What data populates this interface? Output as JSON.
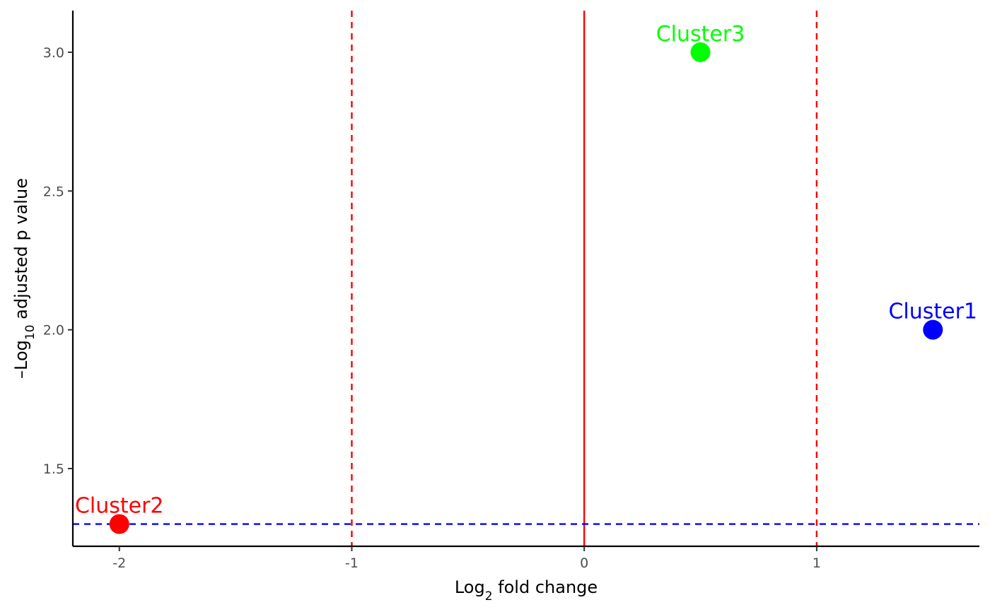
{
  "chart_data": {
    "type": "scatter",
    "title": "",
    "xlabel": {
      "prefix": "Log",
      "sub": "2",
      "suffix": " fold change"
    },
    "ylabel": {
      "prefix": "–Log",
      "sub": "10",
      "suffix": " adjusted p value"
    },
    "xlim": [
      -2.2,
      1.7
    ],
    "ylim": [
      1.22,
      3.15
    ],
    "x_ticks": [
      {
        "value": -2,
        "label": "-2"
      },
      {
        "value": -1,
        "label": "-1"
      },
      {
        "value": 0,
        "label": "0"
      },
      {
        "value": 1,
        "label": "1"
      }
    ],
    "y_ticks": [
      {
        "value": 1.5,
        "label": "1.5"
      },
      {
        "value": 2.0,
        "label": "2.0"
      },
      {
        "value": 2.5,
        "label": "2.5"
      },
      {
        "value": 3.0,
        "label": "3.0"
      }
    ],
    "grid": false,
    "points": [
      {
        "label": "Cluster1",
        "x": 1.5,
        "y": 2.0,
        "color": "#0000ff"
      },
      {
        "label": "Cluster2",
        "x": -2.0,
        "y": 1.3,
        "color": "#ff0000"
      },
      {
        "label": "Cluster3",
        "x": 0.5,
        "y": 3.0,
        "color": "#00ff00"
      }
    ],
    "reference_lines": [
      {
        "orientation": "vertical",
        "value": -1,
        "style": "dashed",
        "color": "#ff0000"
      },
      {
        "orientation": "vertical",
        "value": 0,
        "style": "solid",
        "color": "#ff0000"
      },
      {
        "orientation": "vertical",
        "value": 1,
        "style": "dashed",
        "color": "#ff0000"
      },
      {
        "orientation": "horizontal",
        "value": 1.3,
        "style": "dashed",
        "color": "#0000ff"
      }
    ]
  }
}
